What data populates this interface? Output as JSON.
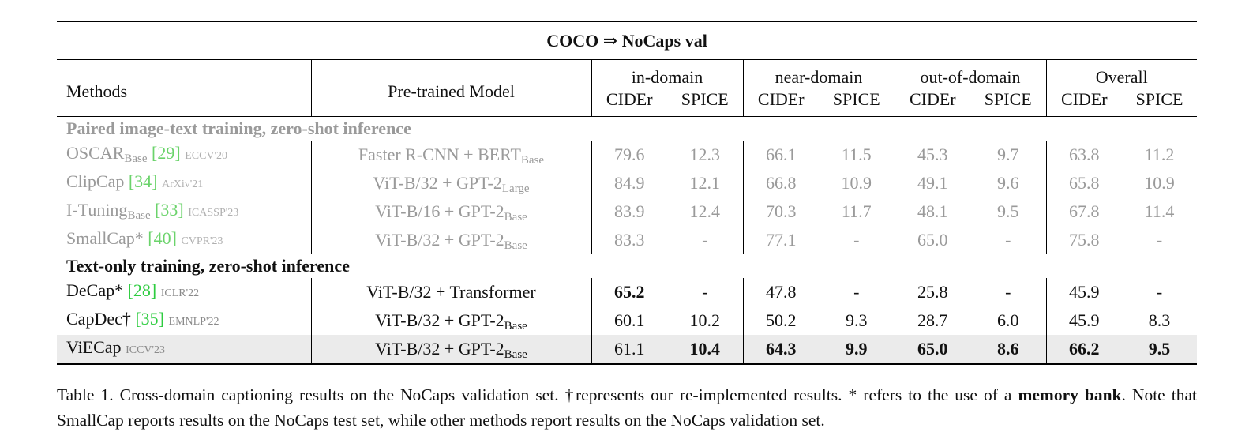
{
  "table_title": "COCO ⇒ NoCaps val",
  "headers": {
    "methods": "Methods",
    "pretrained": "Pre-trained Model",
    "groups": [
      "in-domain",
      "near-domain",
      "out-of-domain",
      "Overall"
    ],
    "cider": "CIDEr",
    "spice": "SPICE"
  },
  "sections": [
    {
      "title": "Paired image-text training, zero-shot inference",
      "rows": [
        {
          "method": "OSCAR",
          "method_sub": "Base",
          "cite": "[29]",
          "venue": "ECCV'20",
          "model": "Faster R-CNN + BERT",
          "model_sub": "Base",
          "vals": [
            "79.6",
            "12.3",
            "66.1",
            "11.5",
            "45.3",
            "9.7",
            "63.8",
            "11.2"
          ]
        },
        {
          "method": "ClipCap",
          "method_sub": "",
          "cite": "[34]",
          "venue": "ArXiv'21",
          "model": "ViT-B/32 + GPT-2",
          "model_sub": "Large",
          "vals": [
            "84.9",
            "12.1",
            "66.8",
            "10.9",
            "49.1",
            "9.6",
            "65.8",
            "10.9"
          ]
        },
        {
          "method": "I-Tuning",
          "method_sub": "Base",
          "cite": "[33]",
          "venue": "ICASSP'23",
          "model": "ViT-B/16 + GPT-2",
          "model_sub": "Base",
          "vals": [
            "83.9",
            "12.4",
            "70.3",
            "11.7",
            "48.1",
            "9.5",
            "67.8",
            "11.4"
          ]
        },
        {
          "method": "SmallCap*",
          "method_sub": "",
          "cite": "[40]",
          "venue": "CVPR'23",
          "model": "ViT-B/32 + GPT-2",
          "model_sub": "Base",
          "vals": [
            "83.3",
            "-",
            "77.1",
            "-",
            "65.0",
            "-",
            "75.8",
            "-"
          ]
        }
      ]
    },
    {
      "title": "Text-only training, zero-shot inference",
      "rows": [
        {
          "method": "DeCap*",
          "method_sub": "",
          "cite": "[28]",
          "venue": "ICLR'22",
          "model": "ViT-B/32 + Transformer",
          "model_sub": "",
          "vals": [
            "65.2",
            "-",
            "47.8",
            "-",
            "25.8",
            "-",
            "45.9",
            "-"
          ]
        },
        {
          "method": "CapDec†",
          "method_sub": "",
          "cite": "[35]",
          "venue": "EMNLP'22",
          "model": "ViT-B/32 + GPT-2",
          "model_sub": "Base",
          "vals": [
            "60.1",
            "10.2",
            "50.2",
            "9.3",
            "28.7",
            "6.0",
            "45.9",
            "8.3"
          ]
        },
        {
          "method": "ViECap",
          "method_sub": "",
          "cite": "",
          "venue": "ICCV'23",
          "model": "ViT-B/32 + GPT-2",
          "model_sub": "Base",
          "vals": [
            "61.1",
            "10.4",
            "64.3",
            "9.9",
            "65.0",
            "8.6",
            "66.2",
            "9.5"
          ]
        }
      ]
    }
  ],
  "caption": {
    "part1": "Table 1. Cross-domain captioning results on the NoCaps validation set.  †represents our re-implemented results.  * refers to the use of a ",
    "bold": "memory bank",
    "part2": ". Note that SmallCap reports results on the NoCaps test set, while other methods report results on the NoCaps validation set."
  }
}
